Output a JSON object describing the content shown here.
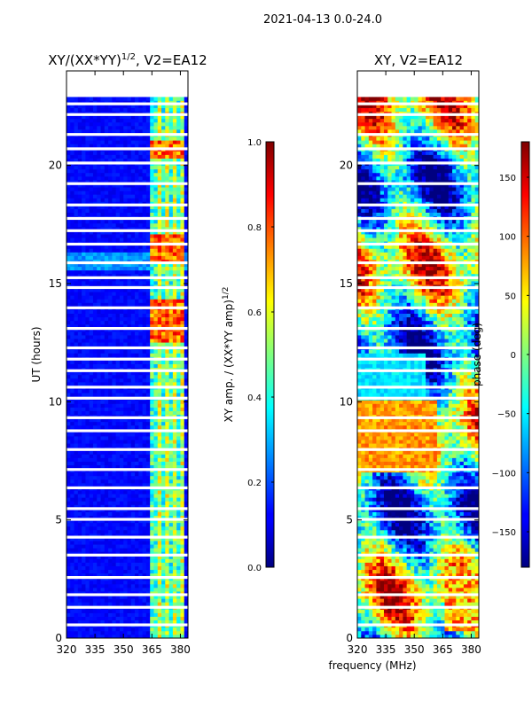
{
  "figure_title": "2021-04-13 0.0-24.0",
  "shared_xlabel": "frequency (MHz)",
  "chart_data": [
    {
      "type": "heatmap",
      "title_main": "XY/(XX*YY)",
      "title_sup": "1/2",
      "title_tail": ", V2=EA12",
      "ylabel": "UT (hours)",
      "xlim": [
        320,
        384
      ],
      "ylim": [
        0,
        24
      ],
      "x_ticks": [
        320,
        335,
        350,
        365,
        380
      ],
      "y_ticks": [
        0,
        5,
        10,
        15,
        20
      ],
      "colorbar": {
        "label_main": "XY amp. / (XX*YY amp)",
        "label_sup": "1/2",
        "range": [
          0.0,
          1.0
        ],
        "ticks": [
          "0.0",
          "0.2",
          "0.4",
          "0.6",
          "0.8",
          "1.0"
        ],
        "tick_values": [
          0.0,
          0.2,
          0.4,
          0.6,
          0.8,
          1.0
        ]
      },
      "data_extent_hours": [
        0,
        22.9
      ]
    },
    {
      "type": "heatmap",
      "title_main": "XY, V2=EA12",
      "title_sup": "",
      "title_tail": "",
      "ylabel": "",
      "xlim": [
        320,
        384
      ],
      "ylim": [
        0,
        24
      ],
      "x_ticks": [
        320,
        335,
        350,
        365,
        380
      ],
      "y_ticks": [
        0,
        5,
        10,
        15,
        20
      ],
      "colorbar": {
        "label_main": "phase (deg)",
        "label_sup": "",
        "range": [
          -180,
          180
        ],
        "ticks": [
          "−150",
          "−100",
          "−50",
          "0",
          "50",
          "100",
          "150"
        ],
        "tick_values": [
          -150,
          -100,
          -50,
          0,
          50,
          100,
          150
        ]
      },
      "data_extent_hours": [
        0,
        22.9
      ]
    }
  ]
}
